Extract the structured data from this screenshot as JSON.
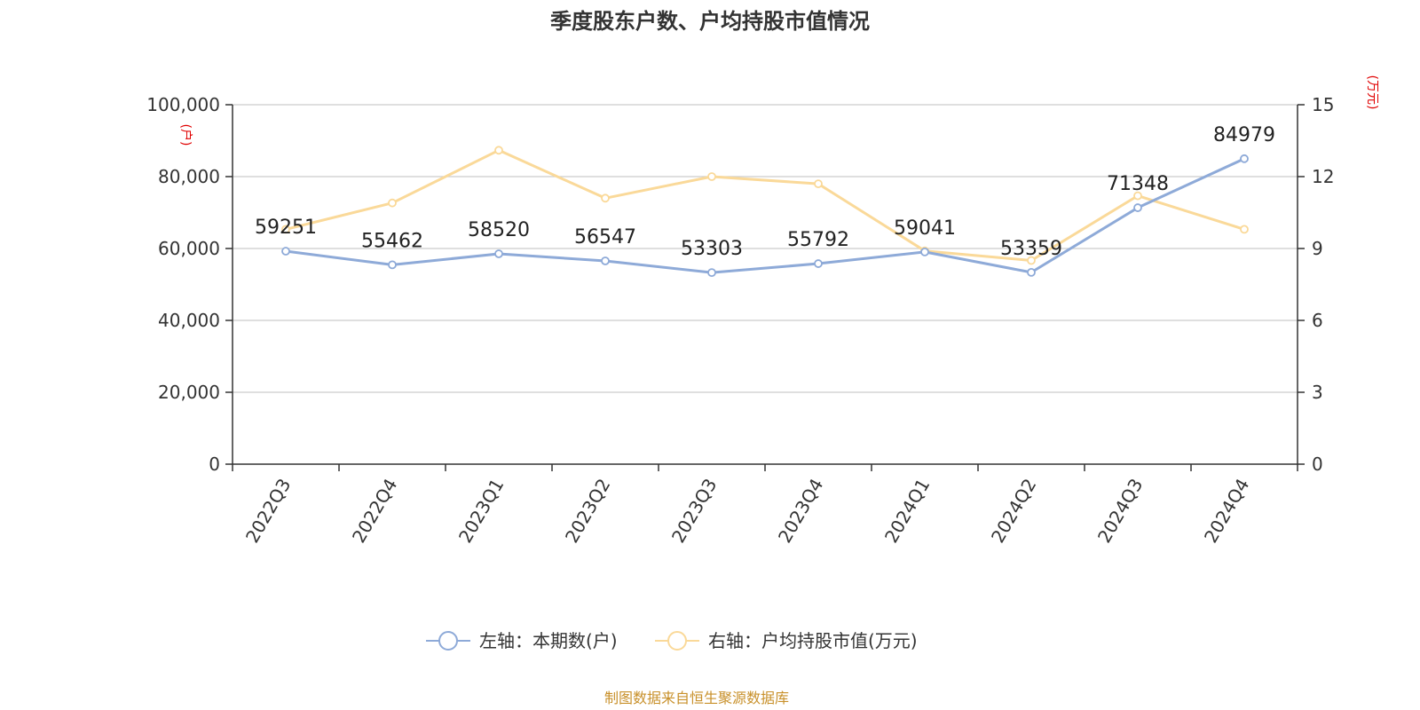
{
  "chart_data": {
    "type": "line",
    "title": "季度股东户数、户均持股市值情况",
    "categories": [
      "2022Q3",
      "2022Q4",
      "2023Q1",
      "2023Q2",
      "2023Q3",
      "2023Q4",
      "2024Q1",
      "2024Q2",
      "2024Q3",
      "2024Q4"
    ],
    "series": [
      {
        "name": "左轴：本期数(户)",
        "axis": "left",
        "color": "#8eaad8",
        "values": [
          59251,
          55462,
          58520,
          56547,
          53303,
          55792,
          59041,
          53359,
          71348,
          84979
        ],
        "labels": [
          "59251",
          "55462",
          "58520",
          "56547",
          "53303",
          "55792",
          "59041",
          "53359",
          "71348",
          "84979"
        ]
      },
      {
        "name": "右轴：户均持股市值(万元)",
        "axis": "right",
        "color": "#fad999",
        "values": [
          9.8,
          10.9,
          13.1,
          11.1,
          12.0,
          11.7,
          8.9,
          8.5,
          11.2,
          9.8
        ]
      }
    ],
    "left_axis": {
      "unit": "(户)",
      "ylim": [
        0,
        100000
      ],
      "ticks": [
        "0",
        "20,000",
        "40,000",
        "60,000",
        "80,000",
        "100,000"
      ]
    },
    "right_axis": {
      "unit": "(万元)",
      "ylim": [
        0,
        15
      ],
      "ticks": [
        "0",
        "3",
        "6",
        "9",
        "12",
        "15"
      ]
    },
    "grid": true,
    "legend_position": "bottom"
  },
  "source": "制图数据来自恒生聚源数据库"
}
